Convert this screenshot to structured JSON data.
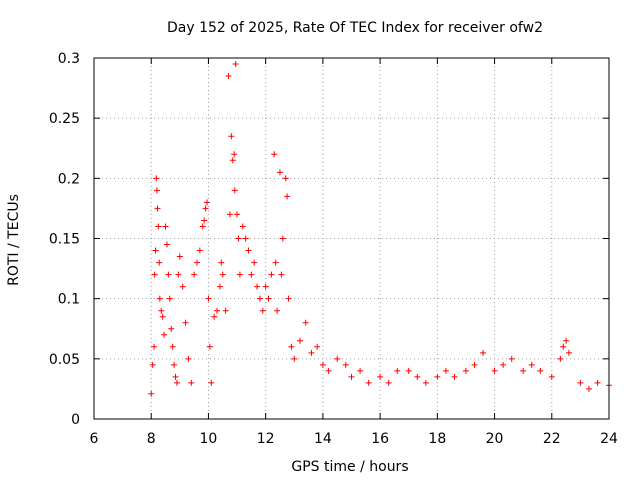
{
  "chart_data": {
    "type": "scatter",
    "title": "Day 152 of 2025, Rate Of TEC Index for receiver ofw2",
    "xlabel": "GPS time / hours",
    "ylabel": "ROTI / TECUs",
    "xlim": [
      6,
      24
    ],
    "ylim": [
      0,
      0.3
    ],
    "x_ticks": [
      6,
      8,
      10,
      12,
      14,
      16,
      18,
      20,
      22,
      24
    ],
    "x_tick_labels": [
      "6",
      "8",
      "10",
      "12",
      "14",
      "16",
      "18",
      "20",
      "22",
      "24"
    ],
    "y_ticks": [
      0,
      0.05,
      0.1,
      0.15,
      0.2,
      0.25,
      0.3
    ],
    "y_tick_labels": [
      "0",
      "0.05",
      "0.1",
      "0.15",
      "0.2",
      "0.25",
      "0.3"
    ],
    "grid": true,
    "marker": "+",
    "color": "#ff0000",
    "series": [
      {
        "name": "ROTI",
        "points": [
          [
            8.0,
            0.021
          ],
          [
            8.05,
            0.045
          ],
          [
            8.1,
            0.06
          ],
          [
            8.12,
            0.12
          ],
          [
            8.15,
            0.14
          ],
          [
            8.18,
            0.2
          ],
          [
            8.2,
            0.19
          ],
          [
            8.22,
            0.175
          ],
          [
            8.25,
            0.16
          ],
          [
            8.28,
            0.13
          ],
          [
            8.3,
            0.1
          ],
          [
            8.35,
            0.09
          ],
          [
            8.4,
            0.085
          ],
          [
            8.45,
            0.07
          ],
          [
            8.5,
            0.16
          ],
          [
            8.55,
            0.145
          ],
          [
            8.6,
            0.12
          ],
          [
            8.65,
            0.1
          ],
          [
            8.7,
            0.075
          ],
          [
            8.75,
            0.06
          ],
          [
            8.8,
            0.045
          ],
          [
            8.85,
            0.035
          ],
          [
            8.9,
            0.03
          ],
          [
            8.95,
            0.12
          ],
          [
            9.0,
            0.135
          ],
          [
            9.1,
            0.11
          ],
          [
            9.2,
            0.08
          ],
          [
            9.3,
            0.05
          ],
          [
            9.4,
            0.03
          ],
          [
            9.5,
            0.12
          ],
          [
            9.6,
            0.13
          ],
          [
            9.7,
            0.14
          ],
          [
            9.8,
            0.16
          ],
          [
            9.85,
            0.165
          ],
          [
            9.9,
            0.175
          ],
          [
            9.95,
            0.18
          ],
          [
            10.0,
            0.1
          ],
          [
            10.05,
            0.06
          ],
          [
            10.1,
            0.03
          ],
          [
            10.2,
            0.085
          ],
          [
            10.3,
            0.09
          ],
          [
            10.4,
            0.11
          ],
          [
            10.45,
            0.13
          ],
          [
            10.5,
            0.12
          ],
          [
            10.6,
            0.09
          ],
          [
            10.7,
            0.285
          ],
          [
            10.75,
            0.17
          ],
          [
            10.8,
            0.235
          ],
          [
            10.85,
            0.215
          ],
          [
            10.9,
            0.22
          ],
          [
            10.92,
            0.19
          ],
          [
            10.95,
            0.295
          ],
          [
            11.0,
            0.17
          ],
          [
            11.05,
            0.15
          ],
          [
            11.1,
            0.12
          ],
          [
            11.2,
            0.16
          ],
          [
            11.3,
            0.15
          ],
          [
            11.4,
            0.14
          ],
          [
            11.5,
            0.12
          ],
          [
            11.6,
            0.13
          ],
          [
            11.7,
            0.11
          ],
          [
            11.8,
            0.1
          ],
          [
            11.9,
            0.09
          ],
          [
            12.0,
            0.11
          ],
          [
            12.1,
            0.1
          ],
          [
            12.2,
            0.12
          ],
          [
            12.3,
            0.22
          ],
          [
            12.35,
            0.13
          ],
          [
            12.4,
            0.09
          ],
          [
            12.5,
            0.205
          ],
          [
            12.55,
            0.12
          ],
          [
            12.6,
            0.15
          ],
          [
            12.7,
            0.2
          ],
          [
            12.75,
            0.185
          ],
          [
            12.8,
            0.1
          ],
          [
            12.9,
            0.06
          ],
          [
            13.0,
            0.05
          ],
          [
            13.2,
            0.065
          ],
          [
            13.4,
            0.08
          ],
          [
            13.6,
            0.055
          ],
          [
            13.8,
            0.06
          ],
          [
            14.0,
            0.045
          ],
          [
            14.2,
            0.04
          ],
          [
            14.5,
            0.05
          ],
          [
            14.8,
            0.045
          ],
          [
            15.0,
            0.035
          ],
          [
            15.3,
            0.04
          ],
          [
            15.6,
            0.03
          ],
          [
            16.0,
            0.035
          ],
          [
            16.3,
            0.03
          ],
          [
            16.6,
            0.04
          ],
          [
            17.0,
            0.04
          ],
          [
            17.3,
            0.035
          ],
          [
            17.6,
            0.03
          ],
          [
            18.0,
            0.035
          ],
          [
            18.3,
            0.04
          ],
          [
            18.6,
            0.035
          ],
          [
            19.0,
            0.04
          ],
          [
            19.3,
            0.045
          ],
          [
            19.6,
            0.055
          ],
          [
            20.0,
            0.04
          ],
          [
            20.3,
            0.045
          ],
          [
            20.6,
            0.05
          ],
          [
            21.0,
            0.04
          ],
          [
            21.3,
            0.045
          ],
          [
            21.6,
            0.04
          ],
          [
            22.0,
            0.035
          ],
          [
            22.3,
            0.05
          ],
          [
            22.4,
            0.06
          ],
          [
            22.5,
            0.065
          ],
          [
            22.6,
            0.055
          ],
          [
            23.0,
            0.03
          ],
          [
            23.3,
            0.025
          ],
          [
            23.6,
            0.03
          ],
          [
            24.0,
            0.028
          ]
        ]
      }
    ]
  }
}
